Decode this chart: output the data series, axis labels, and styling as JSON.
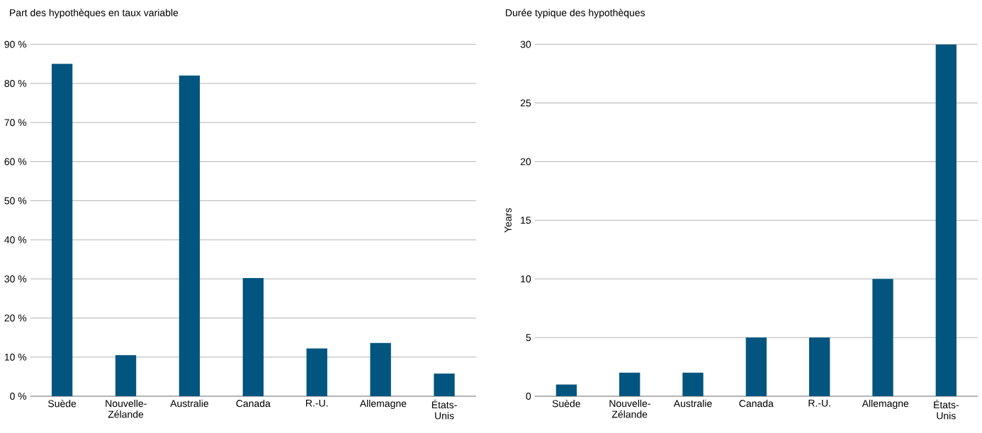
{
  "chart_data": [
    {
      "type": "bar",
      "title": "Part des hypothèques en taux variable",
      "categories": [
        "Suède",
        "Nouvelle-Zélande",
        "Australie",
        "Canada",
        "R.-U.",
        "Allemagne",
        "États-Unis"
      ],
      "values": [
        85,
        10.5,
        82,
        30.2,
        12.2,
        13.6,
        5.8
      ],
      "color": "#02557f",
      "ylim": [
        0,
        90
      ],
      "yticks": [
        {
          "value": 0,
          "label": "0 %"
        },
        {
          "value": 10,
          "label": "10 %"
        },
        {
          "value": 20,
          "label": "20 %"
        },
        {
          "value": 30,
          "label": "30 %"
        },
        {
          "value": 40,
          "label": "40 %"
        },
        {
          "value": 50,
          "label": "50 %"
        },
        {
          "value": 60,
          "label": "60 %"
        },
        {
          "value": 70,
          "label": "70 %"
        },
        {
          "value": 80,
          "label": "80 %"
        },
        {
          "value": 90,
          "label": "90 %"
        }
      ],
      "grid": "y"
    },
    {
      "type": "bar",
      "title": "Durée typique des hypothèques",
      "ylabel": "Years",
      "categories": [
        "Suède",
        "Nouvelle-Zélande",
        "Australie",
        "Canada",
        "R.-U.",
        "Allemagne",
        "États-Unis"
      ],
      "values": [
        1,
        2,
        2,
        5,
        5,
        10,
        30
      ],
      "color": "#02557f",
      "ylim": [
        0,
        30
      ],
      "yticks": [
        0,
        5,
        10,
        15,
        20,
        25,
        30
      ],
      "grid": "y"
    }
  ]
}
